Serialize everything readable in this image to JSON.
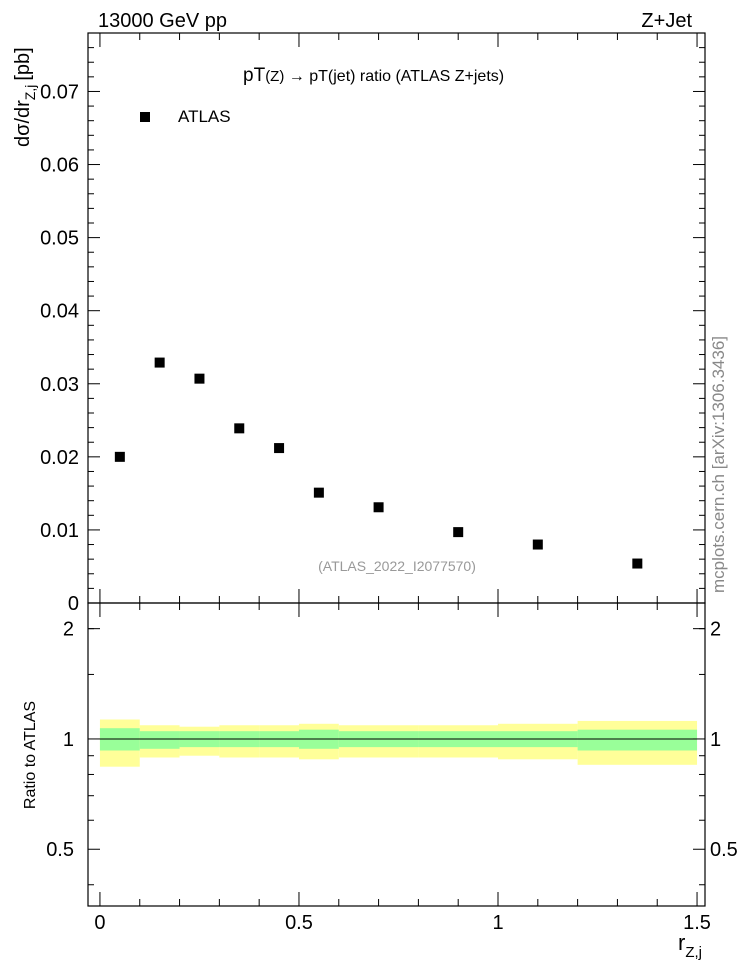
{
  "header": {
    "left": "13000 GeV pp",
    "right": "Z+Jet"
  },
  "side_label": "mcplots.cern.ch [arXiv:1306.3436]",
  "chart_data": [
    {
      "type": "scatter",
      "panel": "main",
      "title": "pT(Z) → pT(jet) ratio (ATLAS Z+jets)",
      "title_parts": {
        "a": "pT",
        "b": "(Z)",
        "c": " → pT(jet) ratio (ATLAS Z+jets)"
      },
      "watermark": "(ATLAS_2022_I2077570)",
      "ylabel": "dσ/dr",
      "ylabel_sub": "Z,j",
      "ylabel_unit": "[pb]",
      "xlim": [
        -0.03,
        1.52
      ],
      "ylim": [
        0,
        0.078
      ],
      "yticks": [
        0,
        0.01,
        0.02,
        0.03,
        0.04,
        0.05,
        0.06,
        0.07
      ],
      "ytick_labels": [
        "0",
        "0.01",
        "0.02",
        "0.03",
        "0.04",
        "0.05",
        "0.06",
        "0.07"
      ],
      "legend": {
        "position": "top-left",
        "entries": [
          "ATLAS"
        ]
      },
      "series": [
        {
          "name": "ATLAS",
          "color": "#000000",
          "x": [
            0.05,
            0.15,
            0.25,
            0.35,
            0.45,
            0.55,
            0.7,
            0.9,
            1.1,
            1.35
          ],
          "y": [
            0.02,
            0.0329,
            0.0307,
            0.0239,
            0.0212,
            0.0151,
            0.0131,
            0.0097,
            0.008,
            0.0054
          ]
        }
      ]
    },
    {
      "type": "area",
      "panel": "ratio",
      "ylabel": "Ratio to ATLAS",
      "xlabel": "r",
      "xlabel_sub": "Z,j",
      "xlim": [
        -0.03,
        1.52
      ],
      "ylim": [
        0.35,
        2.35
      ],
      "xticks": [
        0,
        0.5,
        1,
        1.5
      ],
      "xtick_labels": [
        "0",
        "0.5",
        "1",
        "1.5"
      ],
      "yticks": [
        0.5,
        1,
        2
      ],
      "ytick_labels": [
        "0.5",
        "1",
        "2"
      ],
      "reference_line": 1,
      "bin_edges": [
        0,
        0.1,
        0.2,
        0.3,
        0.4,
        0.5,
        0.6,
        0.8,
        1.0,
        1.2,
        1.5
      ],
      "bands": [
        {
          "name": "total uncertainty",
          "color": "#ffff99",
          "low": [
            0.84,
            0.89,
            0.9,
            0.89,
            0.89,
            0.88,
            0.89,
            0.89,
            0.88,
            0.85
          ],
          "high": [
            1.13,
            1.09,
            1.08,
            1.09,
            1.09,
            1.1,
            1.09,
            1.09,
            1.1,
            1.12
          ]
        },
        {
          "name": "statistical uncertainty",
          "color": "#99ff99",
          "low": [
            0.93,
            0.94,
            0.95,
            0.95,
            0.95,
            0.94,
            0.95,
            0.95,
            0.95,
            0.93
          ],
          "high": [
            1.07,
            1.05,
            1.05,
            1.05,
            1.05,
            1.06,
            1.05,
            1.05,
            1.05,
            1.06
          ]
        }
      ]
    }
  ]
}
